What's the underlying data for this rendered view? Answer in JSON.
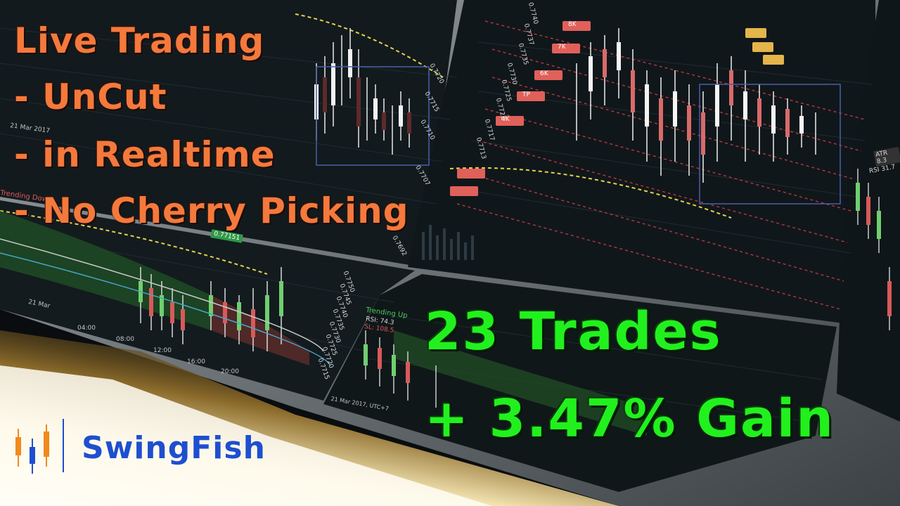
{
  "headline": {
    "line1": "Live Trading",
    "line2": "- UnCut",
    "line3": "- in Realtime",
    "line4": "- No Cherry Picking"
  },
  "stats": {
    "trades": "23 Trades",
    "gain": "+ 3.47% Gain"
  },
  "brand": {
    "name": "SwingFish",
    "colors": {
      "blue": "#1e4fcf",
      "orange": "#f08a1c"
    }
  },
  "screens": {
    "top_left": {
      "date_label": "21 Mar 2017",
      "price_labels": [
        "0.7720",
        "0.7715",
        "0.7710",
        "0.7707",
        "0.7692"
      ]
    },
    "top_mid": {
      "price_labels": [
        "0.7740",
        "0.7737",
        "0.7735",
        "0.7730",
        "0.7725",
        "0.7722",
        "0.7717",
        "0.7713"
      ],
      "order_tags": [
        "8K",
        "7K",
        "6K",
        "4K",
        "TP"
      ]
    },
    "bottom_left": {
      "status": "Trending Dow",
      "price_badge": "0.77151",
      "time_labels": [
        "04:00",
        "08:00",
        "12:00",
        "16:00",
        "20:00"
      ],
      "date_label": "21 Mar",
      "price_labels": [
        "0.7750",
        "0.7745",
        "0.7740",
        "0.7735",
        "0.7730",
        "0.7725",
        "0.7720",
        "0.7715"
      ]
    },
    "bottom_mid": {
      "status": "Trending Up",
      "rsi": "RSI: 74.3",
      "sl": "SL: 108.5",
      "date_label": "21 Mar 2017, UTC+7"
    },
    "right": {
      "atr": "ATR 8.3",
      "rsi": "RSI 31.7"
    }
  }
}
